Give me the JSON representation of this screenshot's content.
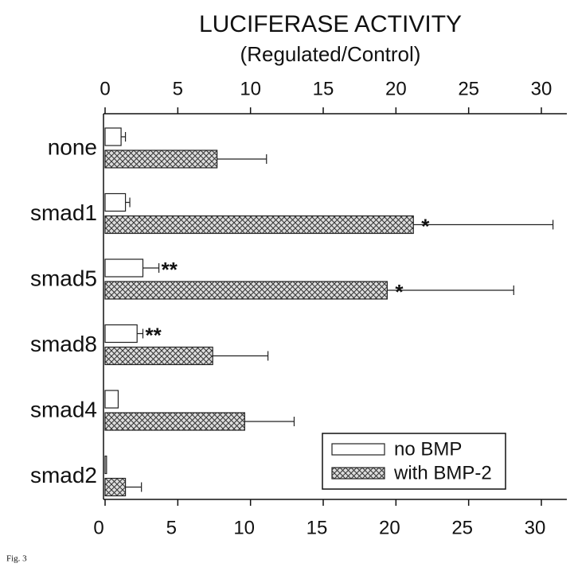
{
  "chart_data": {
    "type": "hbar",
    "title": "LUCIFERASE ACTIVITY",
    "subtitle": "(Regulated/Control)",
    "figure_label": "Fig. 3",
    "categories": [
      "none",
      "smad1",
      "smad5",
      "smad8",
      "smad4",
      "smad2"
    ],
    "series": [
      {
        "name": "no BMP",
        "color": "#ffffff",
        "values": [
          1.1,
          1.4,
          2.6,
          2.2,
          0.9,
          0.1
        ],
        "errors": [
          0.3,
          0.3,
          1.1,
          0.4,
          null,
          null
        ],
        "annotations": [
          null,
          null,
          "**",
          "**",
          null,
          null
        ]
      },
      {
        "name": "with BMP-2",
        "color": "#bbbbbb",
        "hatch": "crosshatch",
        "values": [
          7.7,
          21.2,
          19.4,
          7.4,
          9.6,
          1.4
        ],
        "errors": [
          3.4,
          9.6,
          8.7,
          3.8,
          3.4,
          1.1
        ],
        "annotations": [
          null,
          "*",
          "*",
          null,
          null,
          null
        ]
      }
    ],
    "xlim": [
      0,
      30
    ],
    "xticks": [
      0,
      5,
      10,
      15,
      20,
      25,
      30
    ],
    "legend": "lower right"
  }
}
